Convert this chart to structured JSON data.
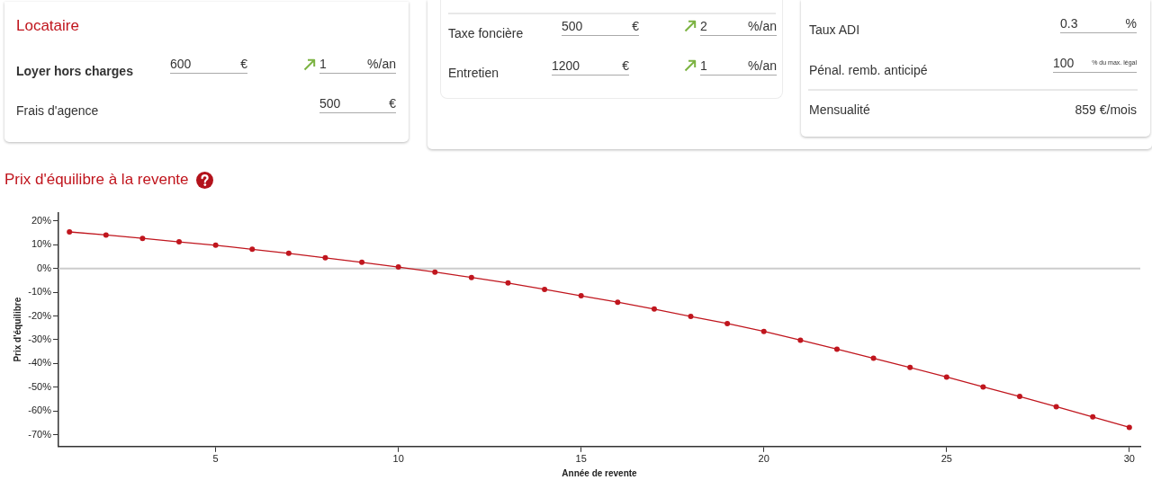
{
  "chart_data": [
    {
      "type": "other",
      "title": "Locataire",
      "annotations": [
        "Loyer hors charges",
        "600",
        "€",
        "1",
        "%/an",
        "Frais d'agence",
        "500",
        "€"
      ]
    },
    {
      "type": "other",
      "annotations": [
        "Taxe foncière",
        "500",
        "€",
        "2",
        "%/an",
        "Entretien",
        "1200",
        "€",
        "1",
        "%/an"
      ]
    },
    {
      "type": "other",
      "annotations": [
        "Taux ADI",
        "0.3",
        "%",
        "Pénal. remb. anticipé",
        "100",
        "% du max. légal",
        "Mensualité",
        "859 €/mois"
      ]
    },
    {
      "type": "line",
      "title": "Prix d'équilibre à la revente",
      "xlabel": "Année de revente",
      "ylabel": "Prix d'équilibre",
      "x": [
        1,
        2,
        3,
        4,
        5,
        6,
        7,
        8,
        9,
        10,
        11,
        12,
        13,
        14,
        15,
        16,
        17,
        18,
        19,
        20,
        21,
        22,
        23,
        24,
        25,
        26,
        27,
        28,
        29,
        30
      ],
      "series": [
        {
          "color": "#c0161e",
          "values": [
            15.4,
            14.1,
            12.7,
            11.2,
            9.8,
            8.1,
            6.4,
            4.5,
            2.6,
            0.6,
            -1.5,
            -3.8,
            -6.1,
            -8.8,
            -11.5,
            -14.2,
            -17.1,
            -20.2,
            -23.2,
            -26.5,
            -30.2,
            -34.0,
            -37.8,
            -41.7,
            -45.7,
            -49.9,
            -53.9,
            -58.2,
            -62.5,
            -66.9
          ]
        }
      ],
      "xlim": [
        0.7,
        30.3
      ],
      "xticks": [
        5,
        10,
        15,
        20,
        25,
        30
      ],
      "ylim": [
        -75,
        23.5
      ],
      "yticks": [
        {
          "value": -70,
          "label": "-70%"
        },
        {
          "value": -60,
          "label": "-60%"
        },
        {
          "value": -50,
          "label": "-50%"
        },
        {
          "value": -40,
          "label": "-40%"
        },
        {
          "value": -30,
          "label": "-30%"
        },
        {
          "value": -20,
          "label": "-20%"
        },
        {
          "value": -10,
          "label": "-10%"
        },
        {
          "value": 0,
          "label": "0%"
        },
        {
          "value": 10,
          "label": "10%"
        },
        {
          "value": 20,
          "label": "20%"
        }
      ],
      "ref_lines": [
        {
          "axis": "y",
          "value": 0,
          "color": "#cccccc"
        }
      ],
      "marker": "circle",
      "line_style": "solid"
    }
  ]
}
